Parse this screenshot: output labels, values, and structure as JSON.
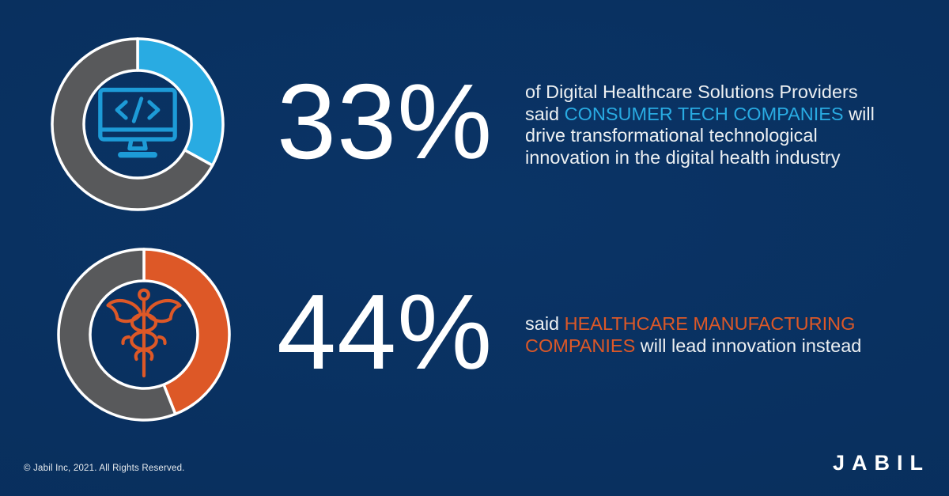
{
  "background": "#083060",
  "colors": {
    "accent_blue": "#29ABE2",
    "accent_orange": "#DD5827",
    "ring_gray": "#58595B",
    "ring_outline": "#FFFFFF",
    "icon_blue": "#1D9BD7",
    "icon_orange": "#DD5827",
    "body_text": "#EDF0F2",
    "percent_text": "#FFFFFF"
  },
  "rows": [
    {
      "percent": "33%",
      "icon": "code-monitor",
      "text_parts": [
        {
          "text": "of Digital Healthcare Solutions Providers\nsaid ",
          "color": null
        },
        {
          "text": "CONSUMER TECH COMPANIES",
          "color": "#29ABE2"
        },
        {
          "text": " will\ndrive transformational technological\ninnovation in the digital health industry",
          "color": null
        }
      ]
    },
    {
      "percent": "44%",
      "icon": "caduceus",
      "text_parts": [
        {
          "text": "said ",
          "color": null
        },
        {
          "text": "HEALTHCARE MANUFACTURING\nCOMPANIES",
          "color": "#DD5827"
        },
        {
          "text": " will lead innovation instead",
          "color": null
        }
      ]
    }
  ],
  "footer": {
    "copyright": "© Jabil Inc, 2021. All Rights Reserved.",
    "logo_text": "JABIL"
  },
  "chart_data": [
    {
      "type": "pie",
      "donut": true,
      "labels": [
        "Consumer tech companies will drive innovation",
        "Remainder"
      ],
      "values": [
        33,
        67
      ],
      "colors": [
        "#29ABE2",
        "#58595B"
      ],
      "start_angle_deg": 0,
      "direction": "clockwise",
      "outline_color": "#FFFFFF"
    },
    {
      "type": "pie",
      "donut": true,
      "labels": [
        "Healthcare manufacturing companies will lead innovation",
        "Remainder"
      ],
      "values": [
        44,
        56
      ],
      "colors": [
        "#DD5827",
        "#58595B"
      ],
      "start_angle_deg": 0,
      "direction": "clockwise",
      "outline_color": "#FFFFFF"
    }
  ]
}
